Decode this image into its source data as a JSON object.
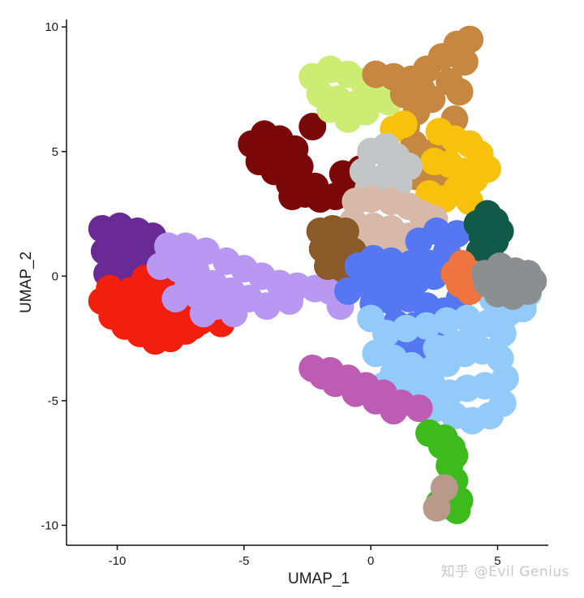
{
  "chart_data": {
    "type": "scatter",
    "title": "",
    "xlabel": "UMAP_1",
    "ylabel": "UMAP_2",
    "xlim": [
      -12,
      7
    ],
    "ylim": [
      -10.8,
      10.3
    ],
    "xticks": [
      -10,
      -5,
      0,
      5
    ],
    "yticks": [
      -10,
      -5,
      0,
      5,
      10
    ],
    "legend": "none",
    "grid": false,
    "clusters": [
      {
        "color": "#6a2a96",
        "points": [
          [
            -10.6,
            1.9
          ],
          [
            -9.9,
            2.0
          ],
          [
            -9.2,
            1.8
          ],
          [
            -8.6,
            1.6
          ],
          [
            -8.0,
            1.2
          ],
          [
            -10.5,
            1.0
          ],
          [
            -10.0,
            1.1
          ],
          [
            -9.3,
            0.9
          ],
          [
            -8.7,
            0.8
          ],
          [
            -8.1,
            0.6
          ],
          [
            -10.4,
            0.1
          ],
          [
            -9.6,
            0.2
          ],
          [
            -8.9,
            0.1
          ],
          [
            -8.3,
            -0.1
          ],
          [
            -10.1,
            -0.6
          ],
          [
            -9.4,
            0.5
          ],
          [
            -8.9,
            1.4
          ],
          [
            -9.6,
            1.5
          ],
          [
            -10.2,
            0.7
          ],
          [
            -7.9,
            0.2
          ]
        ]
      },
      {
        "color": "#f21e0e",
        "points": [
          [
            -10.6,
            -1.0
          ],
          [
            -10.2,
            -1.6
          ],
          [
            -9.7,
            -2.0
          ],
          [
            -9.1,
            -2.3
          ],
          [
            -8.5,
            -2.6
          ],
          [
            -7.9,
            -2.5
          ],
          [
            -7.3,
            -2.2
          ],
          [
            -6.7,
            -1.8
          ],
          [
            -6.2,
            -1.6
          ],
          [
            -9.5,
            -0.6
          ],
          [
            -8.9,
            -0.1
          ],
          [
            -8.2,
            -0.4
          ],
          [
            -7.6,
            -0.7
          ],
          [
            -9.9,
            -1.2
          ],
          [
            -9.2,
            -1.5
          ],
          [
            -8.6,
            -1.8
          ],
          [
            -8.0,
            -1.6
          ],
          [
            -7.4,
            -1.4
          ],
          [
            -6.9,
            -1.1
          ],
          [
            -8.8,
            -0.9
          ],
          [
            -8.1,
            -1.1
          ],
          [
            -7.5,
            -1.0
          ],
          [
            -10.3,
            -0.5
          ],
          [
            -7.0,
            -2.0
          ],
          [
            -5.9,
            -1.9
          ]
        ]
      },
      {
        "color": "#b898f0",
        "points": [
          [
            -8.0,
            1.2
          ],
          [
            -7.3,
            1.2
          ],
          [
            -6.5,
            1.0
          ],
          [
            -5.7,
            0.6
          ],
          [
            -5.0,
            0.3
          ],
          [
            -4.3,
            0.0
          ],
          [
            -3.6,
            -0.3
          ],
          [
            -2.9,
            -0.4
          ],
          [
            -2.2,
            -0.5
          ],
          [
            -1.6,
            -0.6
          ],
          [
            -7.6,
            0.3
          ],
          [
            -6.9,
            0.2
          ],
          [
            -6.2,
            -0.3
          ],
          [
            -5.5,
            -0.6
          ],
          [
            -4.8,
            -0.9
          ],
          [
            -4.1,
            -1.2
          ],
          [
            -6.8,
            -0.8
          ],
          [
            -6.1,
            -1.2
          ],
          [
            -5.4,
            -1.5
          ],
          [
            -7.2,
            -0.4
          ],
          [
            -3.2,
            -1.0
          ],
          [
            -1.2,
            -1.2
          ],
          [
            -7.7,
            -0.9
          ],
          [
            -6.6,
            -1.5
          ],
          [
            -8.3,
            0.4
          ]
        ]
      },
      {
        "color": "#7a0808",
        "points": [
          [
            -4.7,
            5.3
          ],
          [
            -4.2,
            5.7
          ],
          [
            -3.6,
            5.5
          ],
          [
            -3.0,
            5.1
          ],
          [
            -4.4,
            4.6
          ],
          [
            -3.8,
            4.2
          ],
          [
            -3.2,
            3.7
          ],
          [
            -2.6,
            3.3
          ],
          [
            -2.0,
            3.1
          ],
          [
            -1.4,
            3.2
          ],
          [
            -0.8,
            3.6
          ],
          [
            -0.4,
            4.3
          ],
          [
            -3.4,
            4.7
          ],
          [
            -2.8,
            4.4
          ],
          [
            -4.0,
            5.0
          ],
          [
            -2.3,
            6.0
          ],
          [
            -1.1,
            4.1
          ],
          [
            -3.1,
            3.2
          ],
          [
            -2.2,
            3.6
          ]
        ]
      },
      {
        "color": "#ccec74",
        "points": [
          [
            -2.3,
            8.0
          ],
          [
            -1.6,
            8.3
          ],
          [
            -0.9,
            8.1
          ],
          [
            -0.3,
            7.8
          ],
          [
            0.2,
            7.5
          ],
          [
            0.7,
            7.0
          ],
          [
            -2.0,
            7.3
          ],
          [
            -1.3,
            7.1
          ],
          [
            -0.6,
            6.9
          ],
          [
            -1.6,
            6.7
          ],
          [
            -0.9,
            6.3
          ],
          [
            -0.2,
            6.6
          ]
        ]
      },
      {
        "color": "#c68840",
        "points": [
          [
            0.2,
            8.1
          ],
          [
            0.9,
            8.0
          ],
          [
            1.6,
            7.9
          ],
          [
            2.2,
            8.3
          ],
          [
            2.8,
            8.8
          ],
          [
            3.4,
            9.3
          ],
          [
            3.9,
            9.5
          ],
          [
            3.7,
            8.6
          ],
          [
            3.1,
            7.8
          ],
          [
            2.4,
            7.1
          ],
          [
            1.8,
            6.6
          ],
          [
            1.4,
            6.0
          ],
          [
            1.7,
            5.3
          ],
          [
            2.1,
            4.7
          ],
          [
            1.8,
            4.0
          ],
          [
            2.4,
            3.6
          ],
          [
            3.0,
            4.2
          ],
          [
            2.7,
            5.2
          ],
          [
            3.3,
            6.3
          ],
          [
            2.0,
            7.5
          ],
          [
            1.3,
            7.3
          ],
          [
            3.5,
            7.4
          ],
          [
            0.9,
            4.5
          ]
        ]
      },
      {
        "color": "#f8c20c",
        "points": [
          [
            0.9,
            5.9
          ],
          [
            1.3,
            6.1
          ],
          [
            2.7,
            5.8
          ],
          [
            3.3,
            5.5
          ],
          [
            3.9,
            5.3
          ],
          [
            4.3,
            4.9
          ],
          [
            2.5,
            4.6
          ],
          [
            3.1,
            4.5
          ],
          [
            3.7,
            4.2
          ],
          [
            4.1,
            3.9
          ],
          [
            2.3,
            3.3
          ],
          [
            2.9,
            3.1
          ],
          [
            3.4,
            3.5
          ],
          [
            3.9,
            3.0
          ],
          [
            4.6,
            4.3
          ]
        ]
      },
      {
        "color": "#c3c6c6",
        "points": [
          [
            0.0,
            5.0
          ],
          [
            0.6,
            5.2
          ],
          [
            1.0,
            4.8
          ],
          [
            -0.3,
            4.2
          ],
          [
            0.4,
            3.9
          ],
          [
            1.1,
            3.7
          ],
          [
            1.5,
            4.4
          ],
          [
            0.8,
            4.4
          ],
          [
            -0.1,
            3.5
          ]
        ]
      },
      {
        "color": "#d8b8a8",
        "points": [
          [
            -0.6,
            3.0
          ],
          [
            0.0,
            3.1
          ],
          [
            0.8,
            3.0
          ],
          [
            1.5,
            2.8
          ],
          [
            2.0,
            2.5
          ],
          [
            -0.7,
            2.2
          ],
          [
            0.1,
            2.0
          ],
          [
            0.8,
            1.9
          ],
          [
            1.5,
            1.6
          ],
          [
            2.1,
            1.7
          ],
          [
            -0.5,
            1.3
          ],
          [
            0.3,
            1.1
          ],
          [
            1.0,
            1.0
          ],
          [
            1.7,
            0.9
          ],
          [
            2.5,
            2.3
          ],
          [
            0.6,
            0.3
          ],
          [
            -0.2,
            0.4
          ]
        ]
      },
      {
        "color": "#8a5a28",
        "points": [
          [
            -2.0,
            1.8
          ],
          [
            -1.5,
            1.9
          ],
          [
            -1.0,
            1.8
          ],
          [
            -1.9,
            1.1
          ],
          [
            -1.3,
            1.2
          ],
          [
            -0.7,
            1.0
          ],
          [
            -1.7,
            0.4
          ],
          [
            -1.1,
            0.3
          ],
          [
            -0.6,
            0.4
          ],
          [
            -1.3,
            1.6
          ]
        ]
      },
      {
        "color": "#5578f2",
        "points": [
          [
            0.1,
            0.7
          ],
          [
            0.8,
            0.6
          ],
          [
            1.6,
            0.5
          ],
          [
            2.4,
            0.5
          ],
          [
            3.0,
            1.0
          ],
          [
            3.4,
            1.7
          ],
          [
            2.6,
            1.8
          ],
          [
            1.9,
            1.4
          ],
          [
            -0.9,
            -0.6
          ],
          [
            -0.3,
            -0.3
          ],
          [
            0.4,
            -0.2
          ],
          [
            1.1,
            -0.1
          ],
          [
            1.8,
            -0.2
          ],
          [
            2.5,
            0.0
          ],
          [
            3.2,
            0.3
          ],
          [
            0.1,
            -1.1
          ],
          [
            0.8,
            -1.0
          ],
          [
            1.5,
            -0.9
          ],
          [
            2.2,
            -1.2
          ],
          [
            2.9,
            -1.4
          ],
          [
            3.5,
            -0.9
          ],
          [
            1.0,
            -1.9
          ],
          [
            1.7,
            -2.0
          ],
          [
            2.4,
            -2.4
          ],
          [
            1.4,
            -2.9
          ],
          [
            2.0,
            -3.0
          ],
          [
            -0.5,
            0.4
          ]
        ]
      },
      {
        "color": "#92cbf9",
        "points": [
          [
            0.0,
            -1.7
          ],
          [
            0.6,
            -2.3
          ],
          [
            1.4,
            -2.1
          ],
          [
            2.2,
            -2.0
          ],
          [
            3.0,
            -1.8
          ],
          [
            3.8,
            -1.7
          ],
          [
            4.6,
            -1.9
          ],
          [
            5.2,
            -2.3
          ],
          [
            5.4,
            -1.5
          ],
          [
            6.0,
            -1.3
          ],
          [
            6.2,
            -0.7
          ],
          [
            0.2,
            -3.1
          ],
          [
            0.9,
            -3.3
          ],
          [
            1.6,
            -3.6
          ],
          [
            2.3,
            -3.8
          ],
          [
            3.0,
            -3.5
          ],
          [
            3.7,
            -3.1
          ],
          [
            4.4,
            -3.0
          ],
          [
            5.1,
            -3.3
          ],
          [
            5.3,
            -4.1
          ],
          [
            0.5,
            -4.4
          ],
          [
            1.2,
            -4.6
          ],
          [
            1.9,
            -5.0
          ],
          [
            2.6,
            -5.3
          ],
          [
            3.3,
            -5.6
          ],
          [
            4.0,
            -5.8
          ],
          [
            4.7,
            -5.6
          ],
          [
            5.2,
            -5.1
          ],
          [
            4.5,
            -4.4
          ],
          [
            3.8,
            -4.5
          ],
          [
            3.1,
            -4.7
          ],
          [
            2.4,
            -4.3
          ],
          [
            1.7,
            -4.1
          ],
          [
            0.9,
            -3.9
          ],
          [
            3.3,
            -2.7
          ],
          [
            4.0,
            -2.4
          ],
          [
            2.6,
            -2.9
          ],
          [
            4.8,
            -0.9
          ]
        ]
      },
      {
        "color": "#be5cb4",
        "points": [
          [
            -2.3,
            -3.7
          ],
          [
            -1.6,
            -3.8
          ],
          [
            -0.9,
            -4.1
          ],
          [
            -0.2,
            -4.4
          ],
          [
            0.5,
            -4.7
          ],
          [
            1.2,
            -5.1
          ],
          [
            1.9,
            -5.3
          ],
          [
            -1.4,
            -4.3
          ],
          [
            -0.6,
            -4.7
          ],
          [
            0.2,
            -5.0
          ],
          [
            0.9,
            -5.4
          ],
          [
            -1.9,
            -4.0
          ]
        ]
      },
      {
        "color": "#3dbb1c",
        "points": [
          [
            2.3,
            -6.3
          ],
          [
            2.9,
            -6.5
          ],
          [
            3.2,
            -6.9
          ],
          [
            3.1,
            -7.6
          ],
          [
            3.3,
            -8.2
          ],
          [
            3.2,
            -8.7
          ],
          [
            3.0,
            -9.2
          ],
          [
            3.4,
            -9.4
          ],
          [
            3.5,
            -9.0
          ],
          [
            2.7,
            -9.1
          ],
          [
            2.8,
            -6.8
          ],
          [
            3.3,
            -7.2
          ]
        ]
      },
      {
        "color": "#115a48",
        "points": [
          [
            4.2,
            2.1
          ],
          [
            4.6,
            2.5
          ],
          [
            4.9,
            2.2
          ],
          [
            4.4,
            1.6
          ],
          [
            4.9,
            1.4
          ],
          [
            4.3,
            1.0
          ],
          [
            4.7,
            0.8
          ],
          [
            5.1,
            1.8
          ]
        ]
      },
      {
        "color": "#ee7440",
        "points": [
          [
            3.6,
            0.5
          ],
          [
            4.0,
            0.1
          ],
          [
            3.5,
            -0.3
          ],
          [
            3.9,
            -0.6
          ],
          [
            3.3,
            0.1
          ]
        ]
      },
      {
        "color": "#8c8f8f",
        "points": [
          [
            4.5,
            0.1
          ],
          [
            5.1,
            0.4
          ],
          [
            5.7,
            0.2
          ],
          [
            6.2,
            0.1
          ],
          [
            6.2,
            -0.6
          ],
          [
            5.6,
            -0.8
          ],
          [
            5.0,
            -0.7
          ],
          [
            4.6,
            -0.3
          ],
          [
            6.4,
            -0.2
          ],
          [
            5.3,
            -0.2
          ]
        ]
      },
      {
        "color": "#b99a8a",
        "points": [
          [
            2.9,
            -8.5
          ],
          [
            2.6,
            -9.3
          ]
        ]
      }
    ]
  },
  "watermark": "知乎 @Evil Genius"
}
